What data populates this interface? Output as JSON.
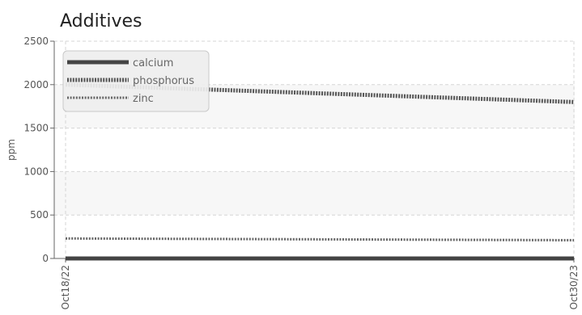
{
  "chart_data": {
    "type": "line",
    "title": "Additives",
    "xlabel": "",
    "ylabel": "ppm",
    "x": [
      "Oct18/22",
      "Oct30/23"
    ],
    "x_tick_labels": [
      "Oct18/22",
      "Oct30/23"
    ],
    "ylim": [
      0,
      2500
    ],
    "y_ticks": [
      0,
      500,
      1000,
      1500,
      2000,
      2500
    ],
    "grid": true,
    "legend_position": "top-left",
    "series": [
      {
        "name": "calcium",
        "values": [
          0,
          0
        ],
        "color": "#444444",
        "style": "solid"
      },
      {
        "name": "phosphorus",
        "values": [
          2000,
          1800
        ],
        "color": "#555555",
        "style": "dotted-thick"
      },
      {
        "name": "zinc",
        "values": [
          230,
          210
        ],
        "color": "#666666",
        "style": "dotted-thin"
      }
    ]
  }
}
